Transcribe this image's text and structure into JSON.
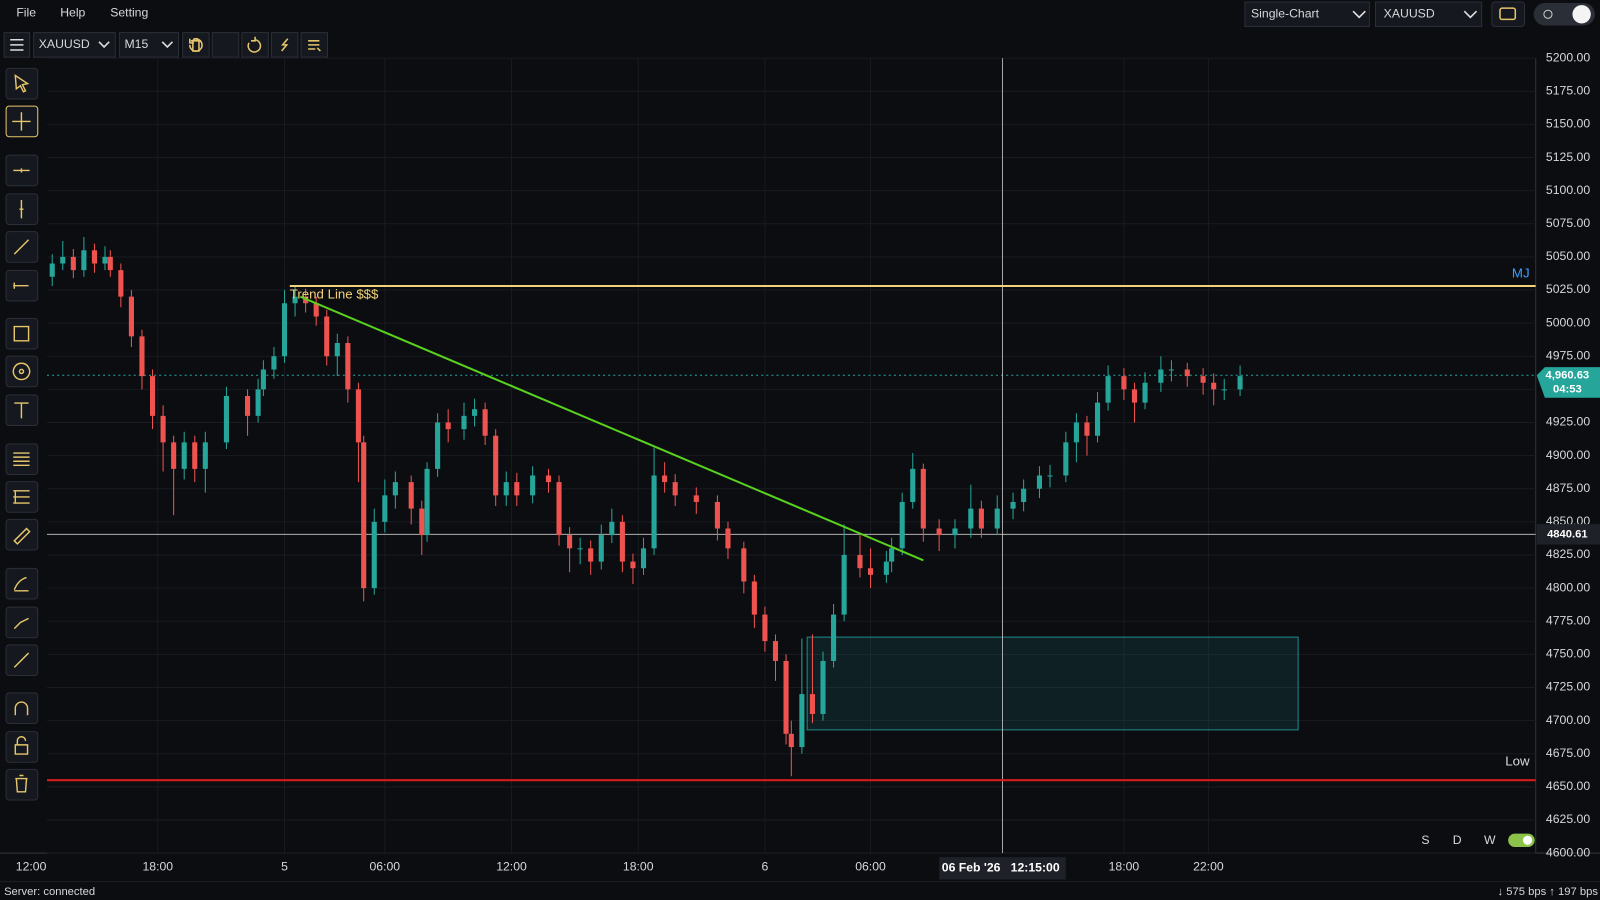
{
  "menu": [
    "File",
    "Help",
    "Setting"
  ],
  "top_right": {
    "layout": "Single-Chart",
    "symbol": "XAUUSD"
  },
  "toolbar": {
    "symbol": "XAUUSD",
    "timeframe": "M15"
  },
  "status": {
    "server": "Server:  connected",
    "traffic": "↓ 575 bps  ↑ 197 bps"
  },
  "range_buttons": [
    "S",
    "D",
    "W"
  ],
  "chart_data": {
    "type": "candlestick",
    "up_color": "#26a69a",
    "down_color": "#ef5350",
    "xlim": [
      3,
      285
    ],
    "ylim": [
      4600,
      5200
    ],
    "grid": true,
    "xticks": [
      {
        "value": 0,
        "label": "12:00"
      },
      {
        "value": 24,
        "label": "18:00"
      },
      {
        "value": 48,
        "label": "5"
      },
      {
        "value": 67,
        "label": "06:00"
      },
      {
        "value": 91,
        "label": "12:00"
      },
      {
        "value": 115,
        "label": "18:00"
      },
      {
        "value": 139,
        "label": "6"
      },
      {
        "value": 159,
        "label": "06:00"
      },
      {
        "value": 207,
        "label": "18:00"
      },
      {
        "value": 223,
        "label": "22:00"
      }
    ],
    "yticks": [
      {
        "value": 4600,
        "label": "4600.00"
      },
      {
        "value": 4625,
        "label": "4625.00"
      },
      {
        "value": 4650,
        "label": "4650.00"
      },
      {
        "value": 4675,
        "label": "4675.00"
      },
      {
        "value": 4700,
        "label": "4700.00"
      },
      {
        "value": 4725,
        "label": "4725.00"
      },
      {
        "value": 4750,
        "label": "4750.00"
      },
      {
        "value": 4775,
        "label": "4775.00"
      },
      {
        "value": 4800,
        "label": "4800.00"
      },
      {
        "value": 4825,
        "label": "4825.00"
      },
      {
        "value": 4850,
        "label": "4850.00"
      },
      {
        "value": 4875,
        "label": "4875.00"
      },
      {
        "value": 4900,
        "label": "4900.00"
      },
      {
        "value": 4925,
        "label": "4925.00"
      },
      {
        "value": 4950,
        "label": "4950.00"
      },
      {
        "value": 4975,
        "label": "4975.00"
      },
      {
        "value": 5000,
        "label": "5000.00"
      },
      {
        "value": 5025,
        "label": "5025.00"
      },
      {
        "value": 5050,
        "label": "5050.00"
      },
      {
        "value": 5075,
        "label": "5075.00"
      },
      {
        "value": 5100,
        "label": "5100.00"
      },
      {
        "value": 5125,
        "label": "5125.00"
      },
      {
        "value": 5150,
        "label": "5150.00"
      },
      {
        "value": 5175,
        "label": "5175.00"
      },
      {
        "value": 5200,
        "label": "5200.00"
      }
    ],
    "x": [
      4,
      6,
      8,
      10,
      12,
      14,
      15,
      17,
      19,
      21,
      23,
      25,
      27,
      29,
      31,
      33,
      37,
      41,
      43,
      44,
      46,
      48,
      50,
      52,
      54,
      56,
      58,
      60,
      62,
      63,
      65,
      67,
      69,
      72,
      74,
      75,
      77,
      79,
      82,
      84,
      86,
      88,
      90,
      92,
      95,
      98,
      100,
      102,
      104,
      106,
      108,
      110,
      112,
      114,
      116,
      118,
      120,
      122,
      126,
      130,
      132,
      135,
      137,
      139,
      141,
      143,
      144,
      146,
      148,
      150,
      152,
      154,
      157,
      159,
      162,
      163,
      165,
      167,
      169,
      172,
      175,
      178,
      180,
      183,
      186,
      188,
      191,
      193,
      196,
      198,
      200,
      202,
      204,
      207,
      209,
      211,
      214,
      216,
      219,
      222,
      224,
      226,
      229
    ],
    "open": [
      5035,
      5045,
      5050,
      5040,
      5055,
      5045,
      5050,
      5040,
      5020,
      4990,
      4960,
      4930,
      4910,
      4890,
      4910,
      4890,
      4910,
      4945,
      4930,
      4950,
      4965,
      4975,
      5015,
      5020,
      5015,
      5005,
      4975,
      4985,
      4950,
      4910,
      4800,
      4850,
      4870,
      4880,
      4860,
      4840,
      4890,
      4925,
      4920,
      4930,
      4935,
      4915,
      4870,
      4880,
      4870,
      4885,
      4880,
      4840,
      4830,
      4830,
      4820,
      4840,
      4850,
      4820,
      4815,
      4830,
      4885,
      4880,
      4870,
      4865,
      4845,
      4830,
      4805,
      4780,
      4760,
      4745,
      4690,
      4680,
      4720,
      4705,
      4745,
      4780,
      4825,
      4815,
      4810,
      4820,
      4830,
      4865,
      4890,
      4845,
      4840,
      4845,
      4860,
      4845,
      4860,
      4865,
      4875,
      4885,
      4885,
      4910,
      4925,
      4915,
      4940,
      4960,
      4950,
      4940,
      4955,
      4965,
      4965,
      4960,
      4955,
      4950,
      4950
    ],
    "high": [
      5052,
      5062,
      5056,
      5065,
      5060,
      5058,
      5055,
      5045,
      5025,
      4995,
      4965,
      4938,
      4915,
      4918,
      4915,
      4918,
      4952,
      4950,
      4958,
      4972,
      4982,
      5025,
      5028,
      5026,
      5020,
      5010,
      4992,
      4990,
      4955,
      4915,
      4860,
      4882,
      4888,
      4885,
      4866,
      4895,
      4932,
      4935,
      4940,
      4943,
      4940,
      4920,
      4888,
      4887,
      4892,
      4890,
      4885,
      4846,
      4838,
      4836,
      4848,
      4860,
      4855,
      4826,
      4838,
      4906,
      4895,
      4886,
      4876,
      4870,
      4850,
      4835,
      4810,
      4786,
      4765,
      4750,
      4700,
      4762,
      4765,
      4752,
      4788,
      4848,
      4840,
      4830,
      4828,
      4838,
      4872,
      4902,
      4894,
      4852,
      4852,
      4878,
      4866,
      4870,
      4872,
      4882,
      4892,
      4893,
      4918,
      4932,
      4930,
      4948,
      4968,
      4966,
      4955,
      4963,
      4975,
      4972,
      4970,
      4966,
      4962,
      4958,
      4968
    ],
    "low": [
      5028,
      5040,
      5034,
      5035,
      5038,
      5040,
      5035,
      5012,
      4982,
      4950,
      4920,
      4888,
      4855,
      4882,
      4880,
      4872,
      4905,
      4915,
      4925,
      4945,
      4958,
      4970,
      5005,
      5008,
      4998,
      4968,
      4960,
      4940,
      4880,
      4790,
      4795,
      4842,
      4860,
      4848,
      4825,
      4835,
      4884,
      4910,
      4912,
      4922,
      4908,
      4862,
      4862,
      4862,
      4864,
      4872,
      4832,
      4812,
      4818,
      4810,
      4814,
      4834,
      4812,
      4803,
      4810,
      4825,
      4872,
      4862,
      4856,
      4836,
      4822,
      4796,
      4770,
      4752,
      4730,
      4682,
      4658,
      4675,
      4698,
      4700,
      4740,
      4775,
      4808,
      4800,
      4804,
      4812,
      4825,
      4860,
      4835,
      4828,
      4830,
      4838,
      4838,
      4840,
      4852,
      4858,
      4868,
      4876,
      4880,
      4895,
      4900,
      4910,
      4934,
      4942,
      4925,
      4935,
      4948,
      4956,
      4952,
      4946,
      4938,
      4942,
      4945
    ],
    "close": [
      5045,
      5050,
      5040,
      5055,
      5045,
      5050,
      5040,
      5020,
      4990,
      4960,
      4930,
      4910,
      4890,
      4910,
      4890,
      4910,
      4945,
      4930,
      4950,
      4965,
      4975,
      5015,
      5020,
      5015,
      5005,
      4975,
      4985,
      4950,
      4910,
      4800,
      4850,
      4870,
      4880,
      4860,
      4840,
      4890,
      4925,
      4920,
      4930,
      4935,
      4915,
      4870,
      4880,
      4870,
      4885,
      4880,
      4840,
      4830,
      4830,
      4820,
      4840,
      4850,
      4820,
      4815,
      4830,
      4885,
      4880,
      4870,
      4865,
      4845,
      4830,
      4805,
      4780,
      4760,
      4745,
      4690,
      4680,
      4720,
      4705,
      4745,
      4780,
      4825,
      4815,
      4810,
      4820,
      4830,
      4865,
      4890,
      4845,
      4840,
      4845,
      4860,
      4845,
      4860,
      4865,
      4875,
      4885,
      4885,
      4910,
      4925,
      4915,
      4940,
      4960,
      4950,
      4940,
      4955,
      4965,
      4965,
      4960,
      4955,
      4950,
      4950,
      4960
    ],
    "overlays": {
      "hline": {
        "value": 5028,
        "x_start": 49,
        "label": "Trend Line $$$",
        "tag": "MJ",
        "color": "#f3d37a"
      },
      "trend_line": {
        "x": [
          51,
          169
        ],
        "y": [
          5020,
          4821
        ],
        "color": "#58d21e"
      },
      "low_line": {
        "value": 4655,
        "label": "Low",
        "color": "#d81b1b"
      },
      "zone": {
        "x": [
          147,
          240
        ],
        "y": [
          4693,
          4763
        ],
        "color": "#1f8a8a"
      }
    },
    "last_price": {
      "value": 4960.63,
      "label": "4,960.63",
      "countdown": "04:53"
    },
    "crosshair": {
      "x": 184,
      "price": {
        "value": 4840.61,
        "label": "4840.61"
      },
      "date": "06 Feb '26",
      "time": "12:15:00"
    }
  }
}
